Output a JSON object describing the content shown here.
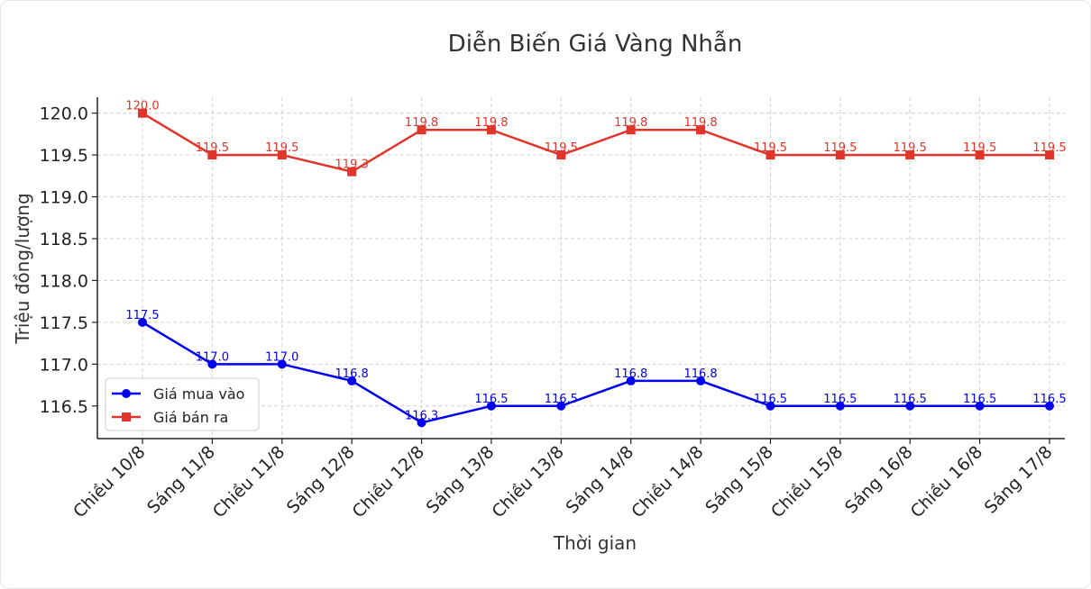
{
  "chart_data": {
    "type": "line",
    "title": "Diễn Biến Giá Vàng Nhẫn",
    "xlabel": "Thời gian",
    "ylabel": "Triệu đồng/lượng",
    "categories": [
      "Chiều 10/8",
      "Sáng 11/8",
      "Chiều 11/8",
      "Sáng 12/8",
      "Chiều 12/8",
      "Sáng 13/8",
      "Chiều 13/8",
      "Sáng 14/8",
      "Chiều 14/8",
      "Sáng 15/8",
      "Chiều 15/8",
      "Sáng 16/8",
      "Chiều 16/8",
      "Sáng 17/8"
    ],
    "yticks": [
      "116.5",
      "117.0",
      "117.5",
      "118.0",
      "118.5",
      "119.0",
      "119.5",
      "120.0"
    ],
    "ylim": [
      116.11,
      120.19
    ],
    "grid": true,
    "legend_position": "lower-left",
    "series": [
      {
        "name": "Giá mua vào",
        "color": "#0000ee",
        "marker": "circle",
        "values": [
          117.5,
          117.0,
          117.0,
          116.8,
          116.3,
          116.5,
          116.5,
          116.8,
          116.8,
          116.5,
          116.5,
          116.5,
          116.5,
          116.5
        ],
        "labels": [
          "117.5",
          "117.0",
          "117.0",
          "116.8",
          "116.3",
          "116.5",
          "116.5",
          "116.8",
          "116.8",
          "116.5",
          "116.5",
          "116.5",
          "116.5",
          "116.5"
        ]
      },
      {
        "name": "Giá bán ra",
        "color": "#e0352b",
        "marker": "square",
        "values": [
          120.0,
          119.5,
          119.5,
          119.3,
          119.8,
          119.8,
          119.5,
          119.8,
          119.8,
          119.5,
          119.5,
          119.5,
          119.5,
          119.5
        ],
        "labels": [
          "120.0",
          "119.5",
          "119.5",
          "119.3",
          "119.8",
          "119.8",
          "119.5",
          "119.8",
          "119.8",
          "119.5",
          "119.5",
          "119.5",
          "119.5",
          "119.5"
        ]
      }
    ]
  }
}
